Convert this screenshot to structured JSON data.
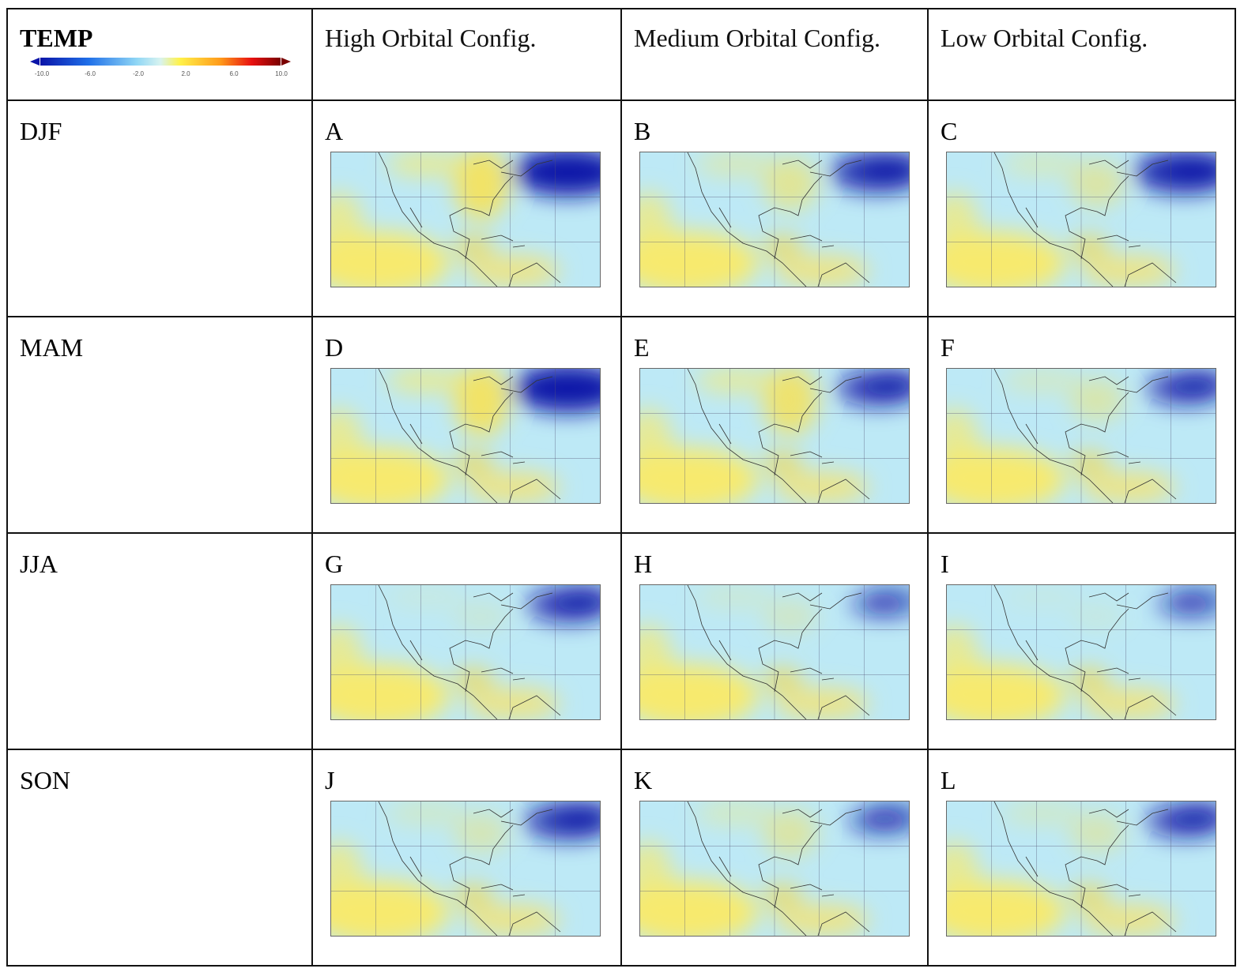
{
  "header": {
    "variable": "TEMP",
    "colorbar": {
      "min": -10.0,
      "max": 10.0,
      "ticks": [
        "-10.0",
        "-6.0",
        "-2.0",
        "2.0",
        "6.0",
        "10.0"
      ],
      "colors": [
        "#0a14a8",
        "#1f6fe8",
        "#8fd6f5",
        "#d8f3f0",
        "#fff24a",
        "#ff9a1a",
        "#e81010",
        "#7a0000"
      ]
    },
    "columns": [
      "High Orbital Config.",
      "Medium Orbital Config.",
      "Low Orbital Config."
    ]
  },
  "rows": [
    {
      "season": "DJF",
      "panels": [
        "A",
        "B",
        "C"
      ]
    },
    {
      "season": "MAM",
      "panels": [
        "D",
        "E",
        "F"
      ]
    },
    {
      "season": "JJA",
      "panels": [
        "G",
        "H",
        "I"
      ]
    },
    {
      "season": "SON",
      "panels": [
        "J",
        "K",
        "L"
      ]
    }
  ]
}
